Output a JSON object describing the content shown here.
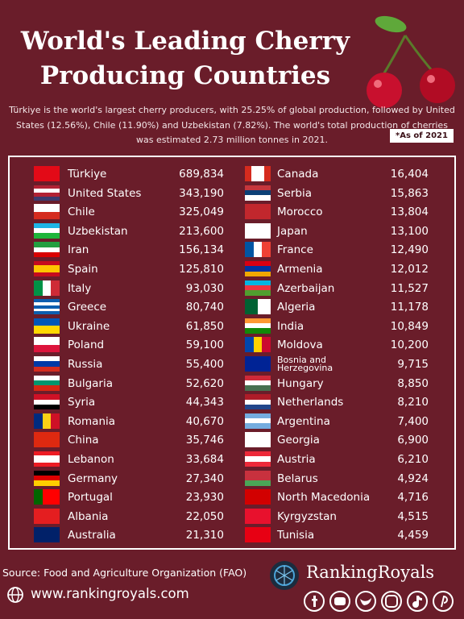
{
  "header": {
    "title": "World's Leading Cherry Producing Countries",
    "subtitle": "Türkiye is the world's largest cherry producers, with 25.25% of global production, followed by United States (12.56%), Chile (11.90%) and Uzbekistan (7.82%). The world's total production of cherries was estimated 2.73 million tonnes in 2021.",
    "note": "*As of 2021"
  },
  "table": {
    "columns": [
      [
        [
          "Türkiye",
          "689,834"
        ],
        [
          "United States",
          "343,190"
        ],
        [
          "Chile",
          "325,049"
        ],
        [
          "Uzbekistan",
          "213,600"
        ],
        [
          "Iran",
          "156,134"
        ],
        [
          "Spain",
          "125,810"
        ],
        [
          "Italy",
          "93,030"
        ],
        [
          "Greece",
          "80,740"
        ],
        [
          "Ukraine",
          "61,850"
        ],
        [
          "Poland",
          "59,100"
        ],
        [
          "Russia",
          "55,400"
        ],
        [
          "Bulgaria",
          "52,620"
        ],
        [
          "Syria",
          "44,343"
        ],
        [
          "Romania",
          "40,670"
        ],
        [
          "China",
          "35,746"
        ],
        [
          "Lebanon",
          "33,684"
        ],
        [
          "Germany",
          "27,340"
        ],
        [
          "Portugal",
          "23,930"
        ],
        [
          "Albania",
          "22,050"
        ],
        [
          "Australia",
          "21,310"
        ]
      ],
      [
        [
          "Canada",
          "16,404"
        ],
        [
          "Serbia",
          "15,863"
        ],
        [
          "Morocco",
          "13,804"
        ],
        [
          "Japan",
          "13,100"
        ],
        [
          "France",
          "12,490"
        ],
        [
          "Armenia",
          "12,012"
        ],
        [
          "Azerbaijan",
          "11,527"
        ],
        [
          "Algeria",
          "11,178"
        ],
        [
          "India",
          "10,849"
        ],
        [
          "Moldova",
          "10,200"
        ],
        [
          "Bosnia and Herzegovina",
          "9,715"
        ],
        [
          "Hungary",
          "8,850"
        ],
        [
          "Netherlands",
          "8,210"
        ],
        [
          "Argentina",
          "7,400"
        ],
        [
          "Georgia",
          "6,900"
        ],
        [
          "Austria",
          "6,210"
        ],
        [
          "Belarus",
          "4,924"
        ],
        [
          "North Macedonia",
          "4,716"
        ],
        [
          "Kyrgyzstan",
          "4,515"
        ],
        [
          "Tunisia",
          "4,459"
        ]
      ]
    ]
  },
  "footer": {
    "source": "Source: Food and Agriculture Organization (FAO)",
    "website": "www.rankingroyals.com",
    "brand": "RankingRoyals"
  }
}
